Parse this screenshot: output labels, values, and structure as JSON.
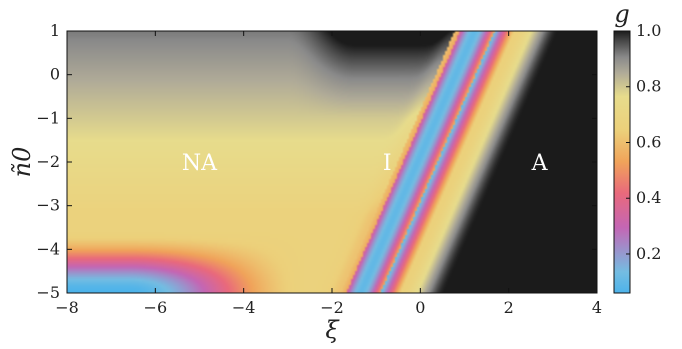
{
  "chart_data": {
    "type": "heatmap",
    "title": "",
    "xlabel": "ξ",
    "ylabel": "ñ0",
    "xlim": [
      -8,
      4
    ],
    "ylim": [
      -5,
      1
    ],
    "x_ticks": [
      -8,
      -6,
      -4,
      -2,
      0,
      2,
      4
    ],
    "x_tick_labels": [
      "−8",
      "−6",
      "−4",
      "−2",
      "0",
      "2",
      "4"
    ],
    "y_ticks": [
      1,
      0,
      -1,
      -2,
      -3,
      -4,
      -5
    ],
    "y_tick_labels": [
      "1",
      "0",
      "−1",
      "−2",
      "−3",
      "−4",
      "−5"
    ],
    "colorbar": {
      "label": "g",
      "range": [
        0.06,
        1.0
      ],
      "ticks": [
        1.0,
        0.8,
        0.6,
        0.4,
        0.2
      ],
      "tick_labels": [
        "1.0",
        "0.8",
        "0.6",
        "0.4",
        "0.2"
      ],
      "colormap": [
        "#4db3ea",
        "#74bde2",
        "#c466b4",
        "#e9697c",
        "#f0a35a",
        "#ecd07a",
        "#e7dc8c",
        "#b0ab98",
        "#8a8a8a",
        "#4a4a4a",
        "#1b1b1b"
      ]
    },
    "regions": [
      {
        "label": "NA",
        "x": -5.0,
        "y": -2.0
      },
      {
        "label": "I",
        "x": -0.75,
        "y": -2.0
      },
      {
        "label": "A",
        "x": 2.7,
        "y": -2.0
      }
    ]
  }
}
